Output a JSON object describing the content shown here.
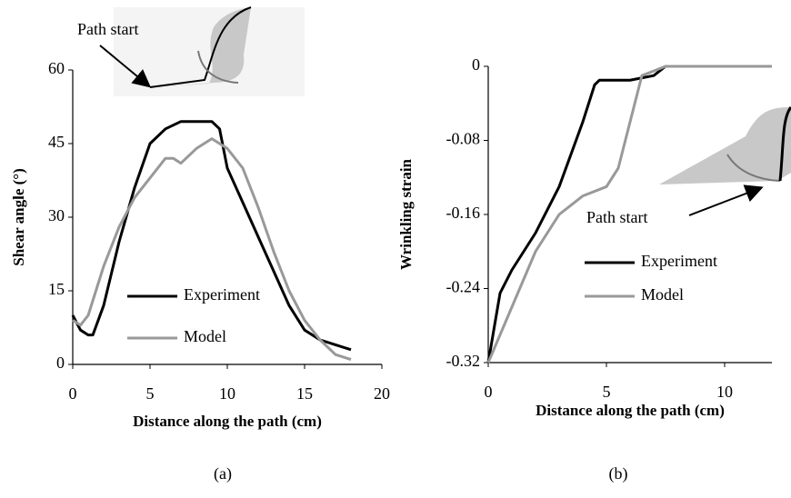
{
  "chart_data": [
    {
      "type": "line",
      "xlabel": "Distance along the path (cm)",
      "ylabel": "Shear angle (°)",
      "xlim": [
        0,
        20
      ],
      "xticks": [
        0,
        5,
        10,
        15,
        20
      ],
      "ylim": [
        0,
        60
      ],
      "yticks": [
        0,
        15,
        30,
        45,
        60
      ],
      "legend": "center",
      "annotation": "Path start",
      "panel_label": "(a)",
      "series": [
        {
          "name": "Experiment",
          "color": "#000000",
          "x": [
            0,
            0.5,
            1,
            1.3,
            2,
            3,
            4,
            5,
            6,
            7,
            8,
            9,
            9.5,
            10,
            11,
            12,
            13,
            14,
            15,
            16,
            17,
            18
          ],
          "values": [
            10,
            7,
            6,
            6,
            12,
            25,
            36,
            45,
            48,
            49.5,
            49.5,
            49.5,
            48,
            40,
            33,
            26,
            19,
            12,
            7,
            5,
            4,
            3
          ]
        },
        {
          "name": "Model",
          "color": "#999999",
          "x": [
            0,
            0.5,
            1,
            2,
            3,
            4,
            5,
            6,
            6.5,
            7,
            8,
            9,
            10,
            11,
            12,
            13,
            14,
            15,
            16,
            17,
            18
          ],
          "values": [
            9,
            8,
            10,
            20,
            28,
            34,
            38,
            42,
            42,
            41,
            44,
            46,
            44,
            40,
            32,
            23,
            15,
            9,
            5,
            2,
            1
          ]
        }
      ]
    },
    {
      "type": "line",
      "xlabel": "Distance along the path (cm)",
      "ylabel": "Wrinkling strain",
      "xlim": [
        0,
        12
      ],
      "xticks": [
        0,
        5,
        10
      ],
      "ylim": [
        -0.32,
        0
      ],
      "yticks": [
        -0.32,
        -0.24,
        -0.16,
        -0.08,
        0
      ],
      "legend": "center right",
      "annotation": "Path start",
      "panel_label": "(b)",
      "series": [
        {
          "name": "Experiment",
          "color": "#000000",
          "x": [
            0,
            0.2,
            0.5,
            1,
            2,
            3,
            4,
            4.5,
            4.7,
            6,
            7,
            7.5,
            12
          ],
          "values": [
            -0.32,
            -0.29,
            -0.245,
            -0.22,
            -0.18,
            -0.13,
            -0.06,
            -0.02,
            -0.015,
            -0.015,
            -0.01,
            0,
            0
          ]
        },
        {
          "name": "Model",
          "color": "#999999",
          "x": [
            0,
            1,
            2,
            3,
            4,
            5,
            5.5,
            6,
            6.5,
            7,
            7.5,
            12
          ],
          "values": [
            -0.32,
            -0.26,
            -0.2,
            -0.16,
            -0.14,
            -0.13,
            -0.11,
            -0.06,
            -0.01,
            -0.005,
            0,
            0
          ]
        }
      ]
    }
  ]
}
